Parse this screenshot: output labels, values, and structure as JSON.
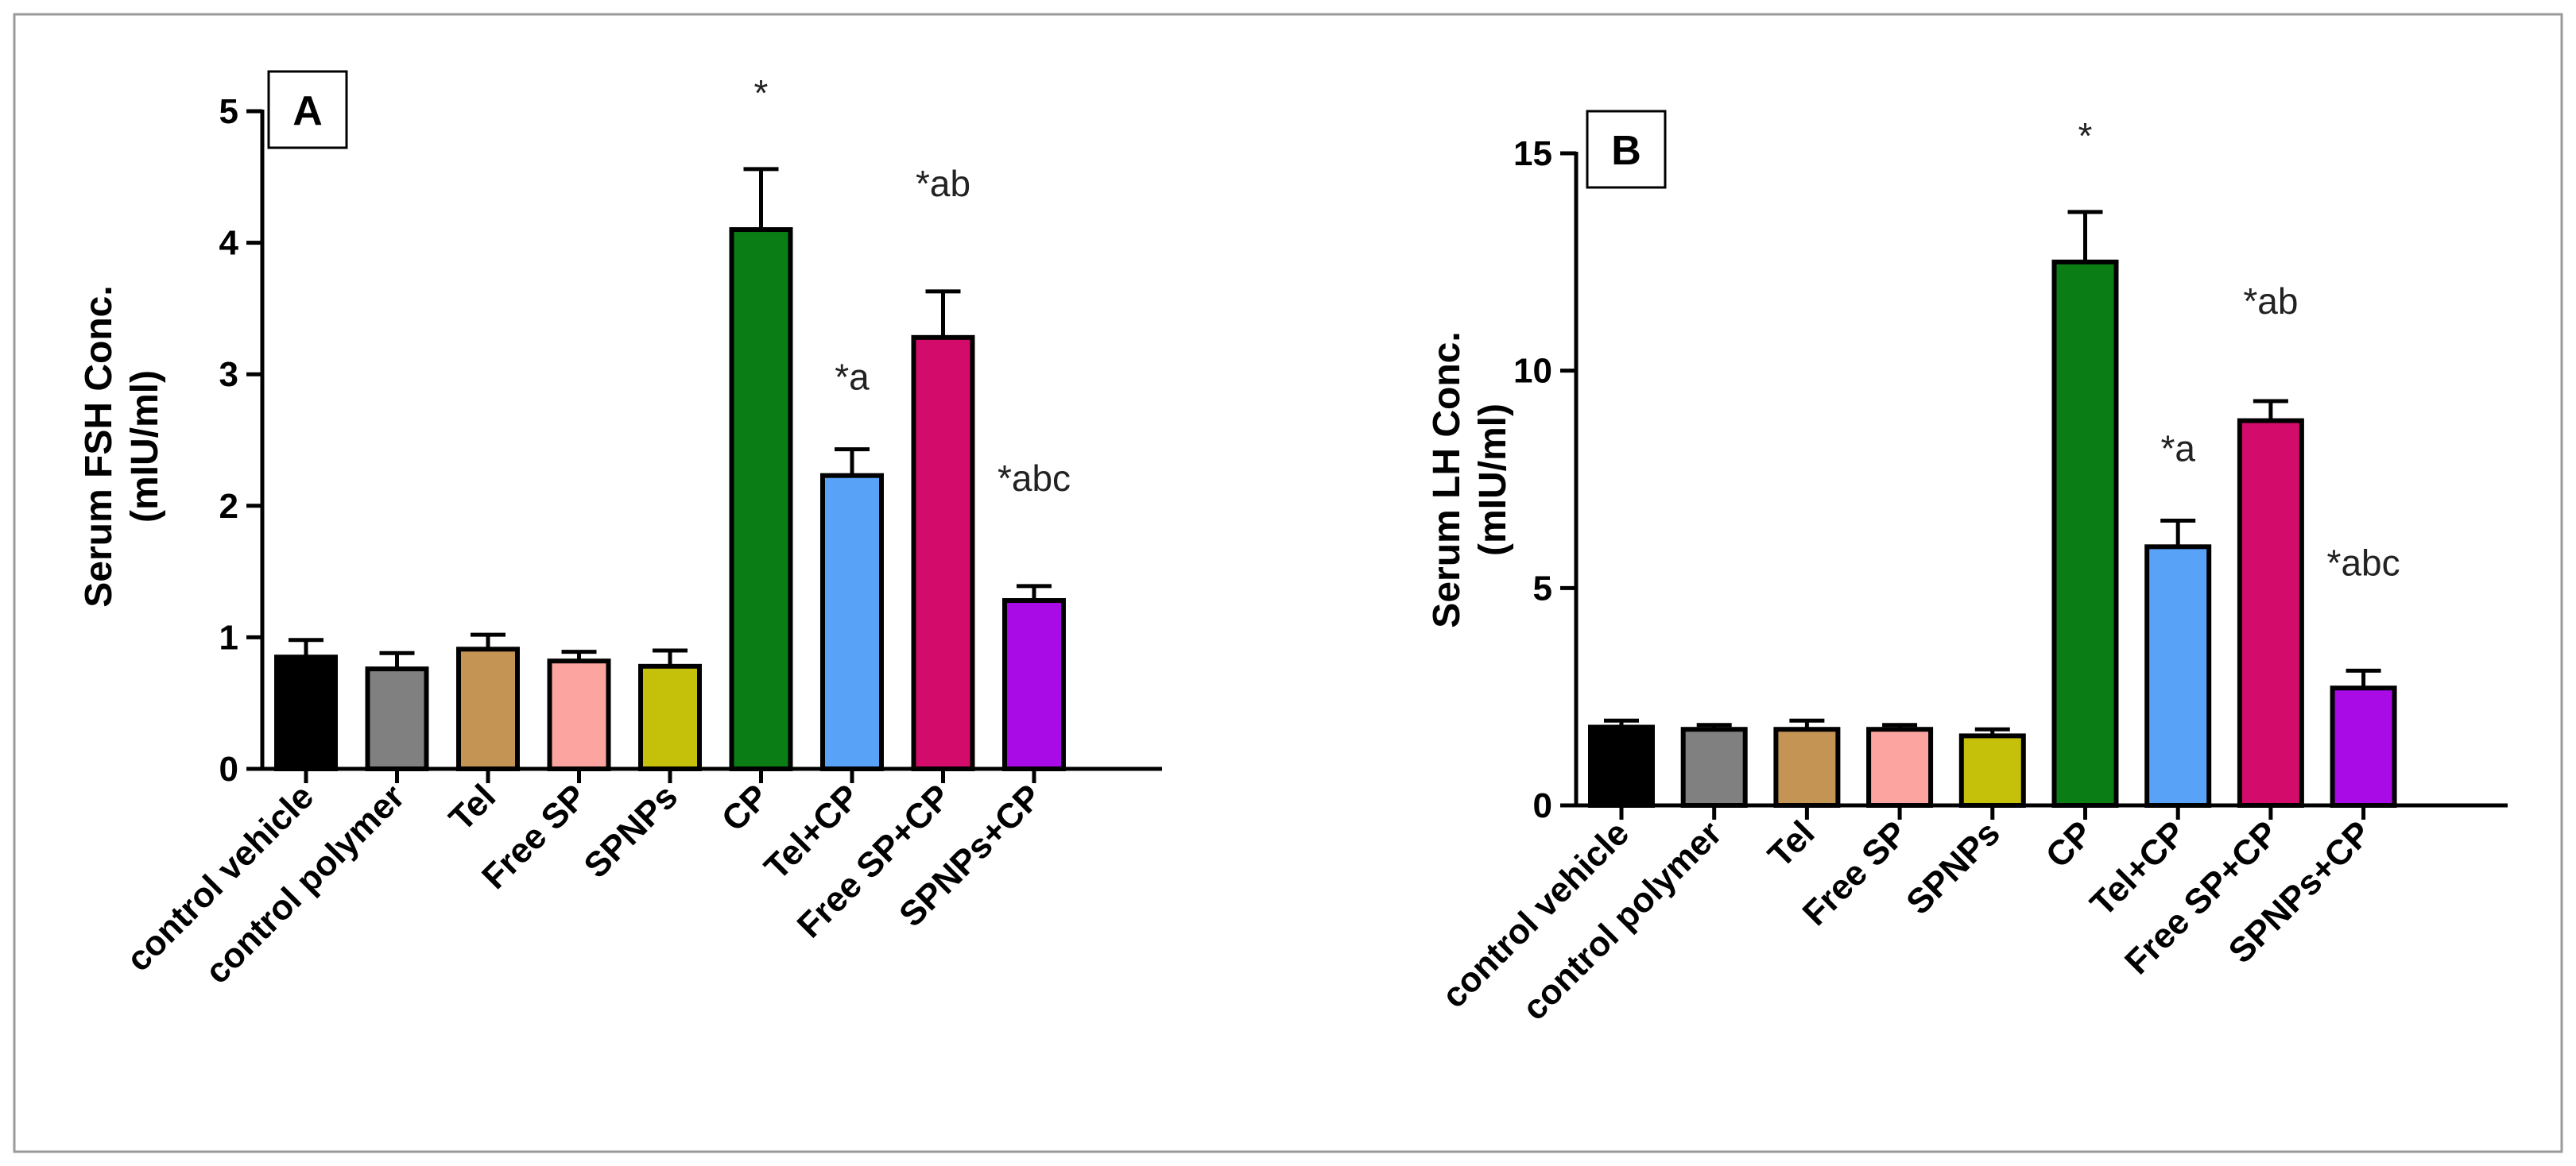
{
  "chart_data": [
    {
      "type": "bar",
      "panel_label": "A",
      "ylabel_line1": "Serum FSH Conc.",
      "ylabel_line2": "(mIU/ml)",
      "ylim": [
        0,
        5
      ],
      "yticks": [
        "0",
        "1",
        "2",
        "3",
        "4",
        "5"
      ],
      "categories": [
        "control vehicle",
        "control polymer",
        "Tel",
        "Free SP",
        "SPNPs",
        "CP",
        "Tel+CP",
        "Free SP+CP",
        "SPNPs+CP"
      ],
      "values": [
        0.85,
        0.76,
        0.91,
        0.82,
        0.78,
        4.1,
        2.23,
        3.28,
        1.28
      ],
      "errors": [
        0.13,
        0.12,
        0.11,
        0.07,
        0.12,
        0.46,
        0.2,
        0.35,
        0.11
      ],
      "annotations": [
        "",
        "",
        "",
        "",
        "",
        "*",
        "*a",
        "*ab",
        "*abc"
      ],
      "colors": [
        "#000000",
        "#808080",
        "#c49455",
        "#fca5a0",
        "#c5c10a",
        "#0a7e14",
        "#58a2f7",
        "#d30c6b",
        "#a90be6"
      ]
    },
    {
      "type": "bar",
      "panel_label": "B",
      "ylabel_line1": "Serum LH Conc.",
      "ylabel_line2": "(mIU/ml)",
      "ylim": [
        0,
        15
      ],
      "yticks": [
        "0",
        "5",
        "10",
        "15"
      ],
      "categories": [
        "control vehicle",
        "control polymer",
        "Tel",
        "Free SP",
        "SPNPs",
        "CP",
        "Tel+CP",
        "Free SP+CP",
        "SPNPs+CP"
      ],
      "values": [
        1.8,
        1.75,
        1.75,
        1.75,
        1.6,
        12.5,
        5.95,
        8.85,
        2.7
      ],
      "errors": [
        0.15,
        0.1,
        0.2,
        0.1,
        0.15,
        1.15,
        0.6,
        0.45,
        0.4
      ],
      "annotations": [
        "",
        "",
        "",
        "",
        "",
        "*",
        "*a",
        "*ab",
        "*abc"
      ],
      "colors": [
        "#000000",
        "#808080",
        "#c49455",
        "#fca5a0",
        "#c5c10a",
        "#0a7e14",
        "#58a2f7",
        "#d30c6b",
        "#a90be6"
      ]
    }
  ]
}
